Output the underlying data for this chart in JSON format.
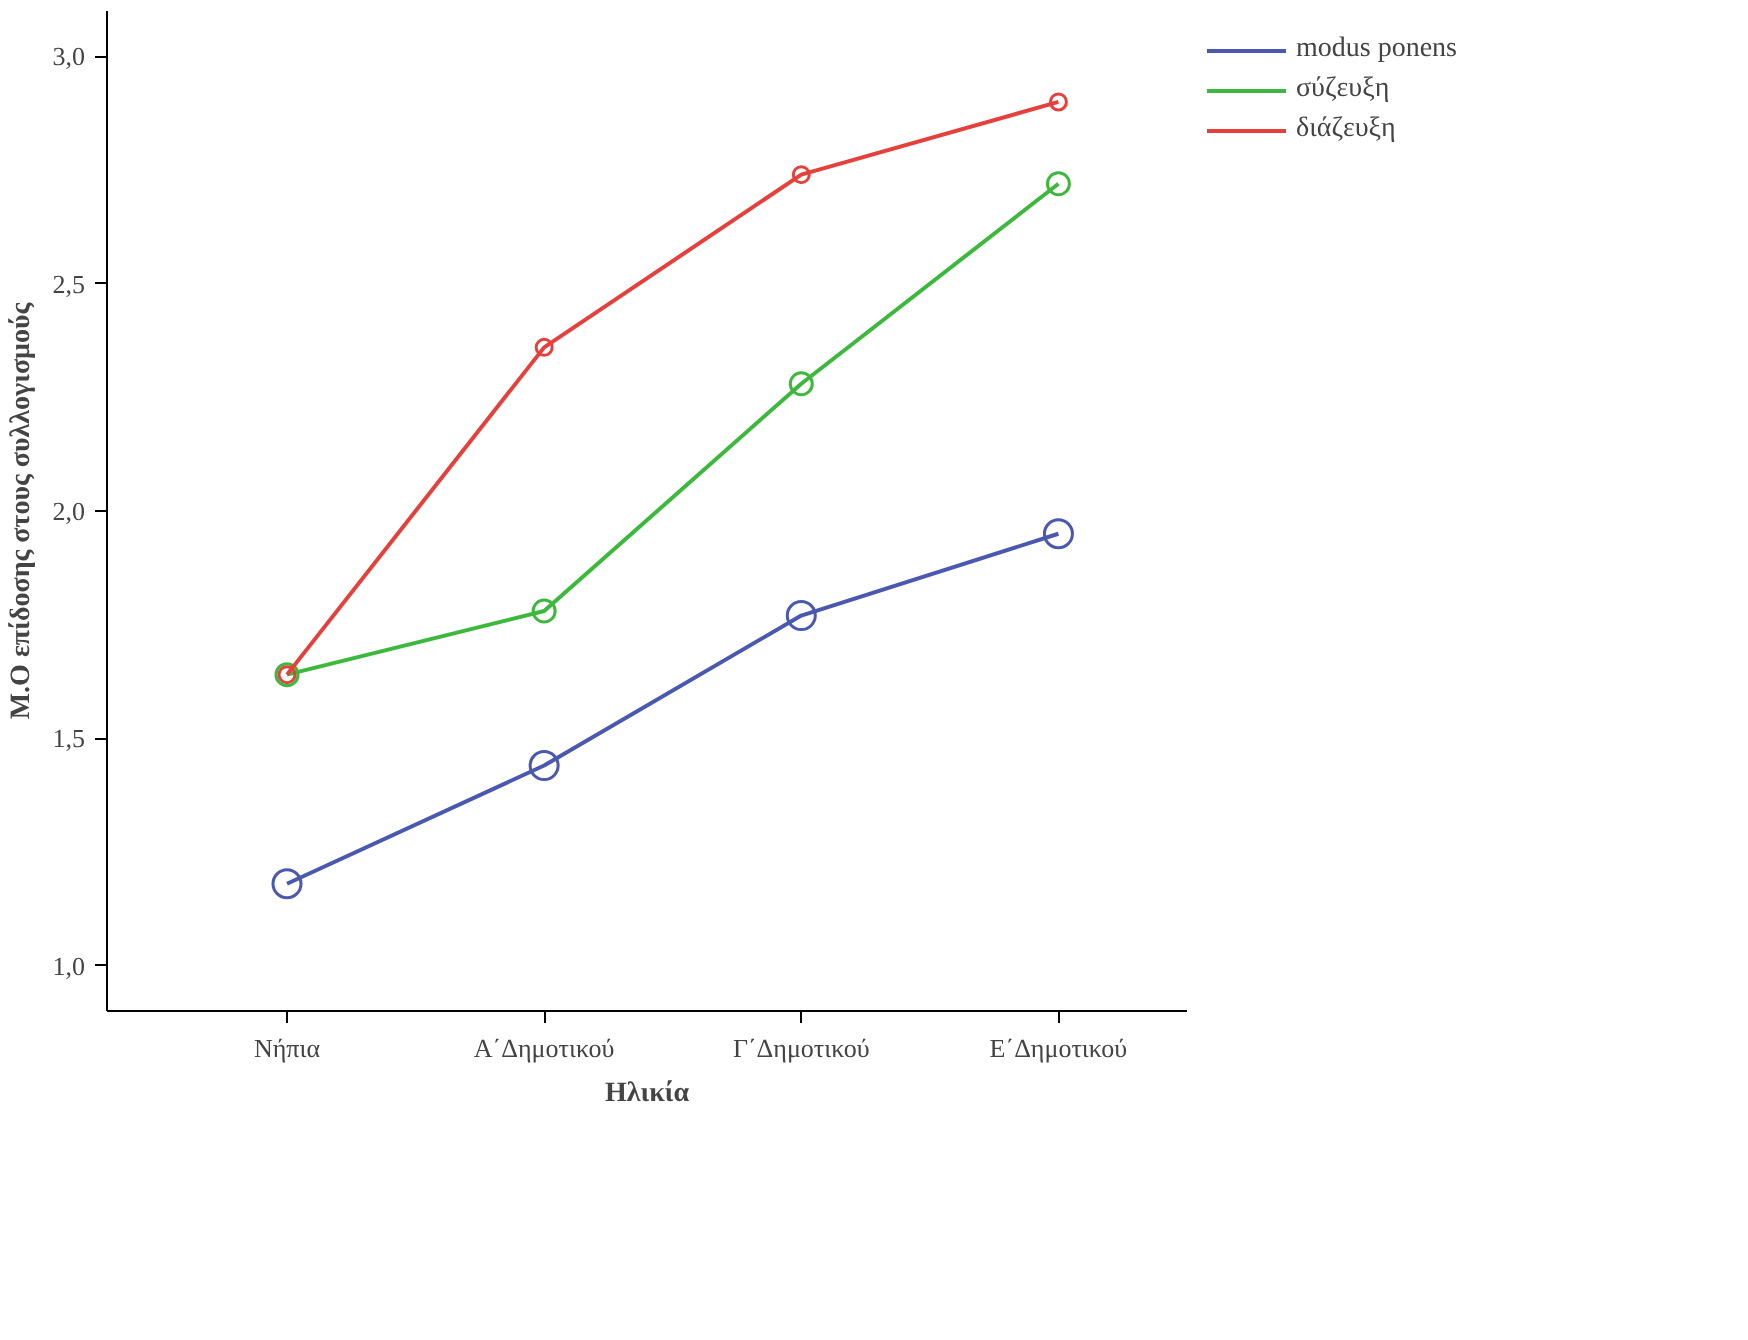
{
  "chart_data": {
    "type": "line",
    "xlabel": "Ηλικία",
    "ylabel": "Μ.Ο επίδοσης στους συλλογισμούς",
    "categories": [
      "Νήπια",
      "Α΄Δημοτικού",
      "Γ΄Δημοτικού",
      "Ε΄Δημοτικού"
    ],
    "ylim": [
      0.9,
      3.1
    ],
    "yticks": [
      {
        "value": 1.0,
        "label": "1,0"
      },
      {
        "value": 1.5,
        "label": "1,5"
      },
      {
        "value": 2.0,
        "label": "2,0"
      },
      {
        "value": 2.5,
        "label": "2,5"
      },
      {
        "value": 3.0,
        "label": "3,0"
      }
    ],
    "series": [
      {
        "name": "modus ponens",
        "color": "#4a58b0",
        "values": [
          1.18,
          1.44,
          1.77,
          1.95
        ]
      },
      {
        "name": "σύζευξη",
        "color": "#3cb83c",
        "values": [
          1.64,
          1.78,
          2.28,
          2.72
        ]
      },
      {
        "name": "διάζευξη",
        "color": "#e5403c",
        "values": [
          1.64,
          2.36,
          2.74,
          2.9
        ]
      }
    ],
    "marker": "circle",
    "line_style": "solid",
    "grid": false,
    "legend": "top right"
  }
}
